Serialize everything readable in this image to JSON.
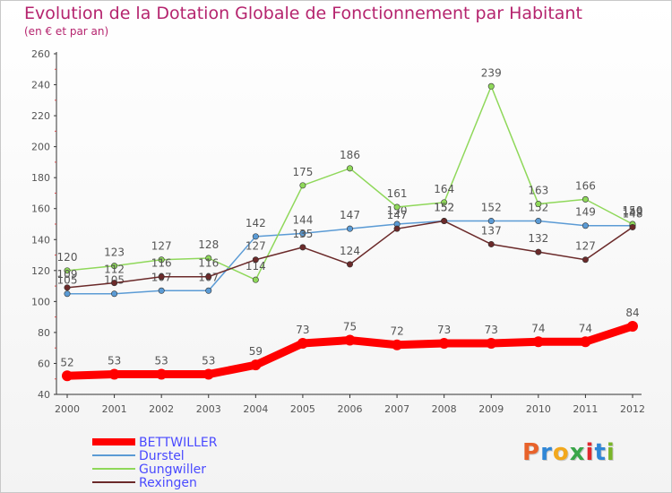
{
  "header": {
    "title": "Evolution de la Dotation Globale de Fonctionnement par Habitant",
    "subtitle": "(en € et par an)"
  },
  "logo": {
    "text": "Proxiti",
    "colors": [
      "#e8622a",
      "#2f86d6",
      "#f2a81d",
      "#3aa64a",
      "#e0282e",
      "#2f86d6",
      "#7ab52a"
    ]
  },
  "chart_data": {
    "type": "line",
    "x": [
      "2000",
      "2001",
      "2002",
      "2003",
      "2004",
      "2005",
      "2006",
      "2007",
      "2008",
      "2009",
      "2010",
      "2011",
      "2012"
    ],
    "ylim": [
      40,
      260
    ],
    "yticks": [
      "40",
      "60",
      "80",
      "100",
      "120",
      "140",
      "160",
      "180",
      "200",
      "220",
      "240",
      "260"
    ],
    "legend_position": "bottom-left",
    "grid": false,
    "series": [
      {
        "name": "Durstel",
        "color": "#5b9bd5",
        "values": [
          105,
          105,
          107,
          107,
          142,
          144,
          147,
          150,
          152,
          152,
          152,
          149,
          149
        ],
        "labels": [
          "105",
          "105",
          "107",
          "107",
          "142",
          "144",
          "147",
          "150",
          "152",
          "152",
          "152",
          "149",
          "149"
        ]
      },
      {
        "name": "Gungwiller",
        "color": "#8fd85a",
        "values": [
          120,
          123,
          127,
          128,
          114,
          175,
          186,
          161,
          164,
          239,
          163,
          166,
          150
        ],
        "labels": [
          "120",
          "123",
          "127",
          "128",
          "114",
          "175",
          "186",
          "161",
          "164",
          "239",
          "163",
          "166",
          "150"
        ]
      },
      {
        "name": "Rexingen",
        "color": "#6b2a2a",
        "values": [
          109,
          112,
          116,
          116,
          127,
          135,
          124,
          147,
          152,
          137,
          132,
          127,
          148
        ],
        "labels": [
          "109",
          "112",
          "116",
          "116",
          "127",
          "135",
          "124",
          "147",
          "152",
          "137",
          "132",
          "127",
          "148"
        ]
      },
      {
        "name": "BETTWILLER",
        "color": "#ff0000",
        "values": [
          52,
          53,
          53,
          53,
          59,
          73,
          75,
          72,
          73,
          73,
          74,
          74,
          84
        ],
        "labels": [
          "52",
          "53",
          "53",
          "53",
          "59",
          "73",
          "75",
          "72",
          "73",
          "73",
          "74",
          "74",
          "84"
        ]
      }
    ],
    "legend_order": [
      "BETTWILLER",
      "Durstel",
      "Gungwiller",
      "Rexingen"
    ]
  }
}
